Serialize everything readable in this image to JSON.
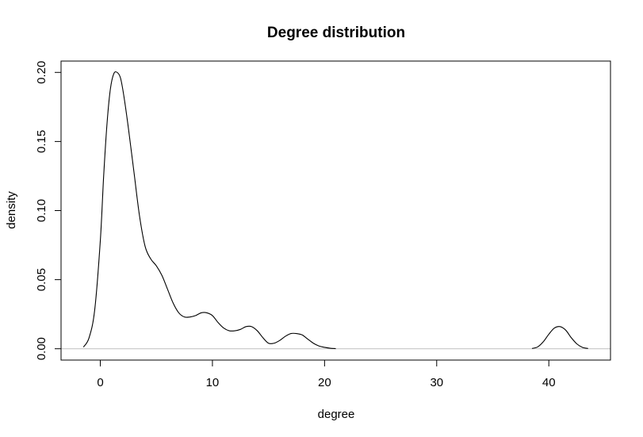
{
  "chart_data": {
    "type": "line",
    "title": "Degree distribution",
    "xlabel": "degree",
    "ylabel": "density",
    "xlim": [
      -3.5,
      45.5
    ],
    "ylim": [
      -0.0082,
      0.2082
    ],
    "x_ticks": [
      0,
      10,
      20,
      30,
      40
    ],
    "x_tick_labels": [
      "0",
      "10",
      "20",
      "30",
      "40"
    ],
    "y_ticks": [
      0.0,
      0.05,
      0.1,
      0.15,
      0.2
    ],
    "y_tick_labels": [
      "0.00",
      "0.05",
      "0.10",
      "0.15",
      "0.20"
    ],
    "grid": false,
    "legend": "none",
    "baseline": 0,
    "colors": {
      "line": "#000000",
      "baseline": "#bebebe",
      "frame": "#000000"
    },
    "series": [
      {
        "x": [
          -1.5,
          -1.0,
          -0.5,
          0.0,
          0.3,
          0.6,
          0.9,
          1.2,
          1.5,
          1.8,
          2.1,
          2.5,
          3.0,
          3.5,
          4.0,
          4.5,
          5.0,
          5.5,
          6.0,
          6.5,
          7.0,
          7.5,
          8.0,
          8.5,
          9.0,
          9.5,
          10.0,
          10.5,
          11.0,
          11.5,
          12.0,
          12.5,
          13.0,
          13.5,
          14.0,
          14.5,
          15.0,
          15.5,
          16.0,
          16.5,
          17.0,
          17.5,
          18.0,
          18.5,
          19.0,
          19.5,
          20.0,
          20.5,
          21.0,
          38.5,
          39.0,
          39.5,
          40.0,
          40.5,
          41.0,
          41.5,
          42.0,
          42.5,
          43.0,
          43.5
        ],
        "y": [
          0.0012,
          0.008,
          0.028,
          0.078,
          0.125,
          0.163,
          0.188,
          0.199,
          0.2,
          0.196,
          0.183,
          0.16,
          0.128,
          0.096,
          0.074,
          0.065,
          0.06,
          0.053,
          0.043,
          0.033,
          0.026,
          0.023,
          0.023,
          0.024,
          0.026,
          0.026,
          0.024,
          0.019,
          0.015,
          0.013,
          0.013,
          0.014,
          0.016,
          0.016,
          0.013,
          0.008,
          0.004,
          0.004,
          0.006,
          0.009,
          0.011,
          0.011,
          0.01,
          0.007,
          0.004,
          0.002,
          0.001,
          0.0004,
          0.0001,
          0.0002,
          0.0013,
          0.005,
          0.0105,
          0.015,
          0.016,
          0.0135,
          0.008,
          0.0035,
          0.001,
          0.0002
        ]
      }
    ]
  }
}
